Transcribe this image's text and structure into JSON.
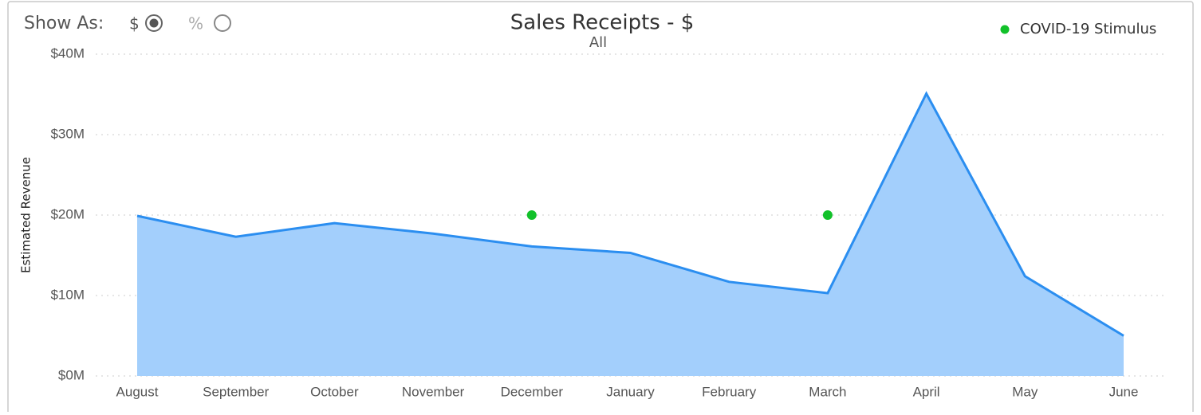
{
  "controls": {
    "label": "Show As:",
    "options": [
      "$",
      "%"
    ],
    "selected": 0
  },
  "chart_data": {
    "type": "area",
    "title": "Sales Receipts - $",
    "subtitle": "All",
    "y_label": "Estimated Revenue",
    "categories": [
      "August",
      "September",
      "October",
      "November",
      "December",
      "January",
      "February",
      "March",
      "April",
      "May",
      "June"
    ],
    "series": [
      {
        "color": "#2b8ef0",
        "fill": "#a3cffc",
        "values": [
          19.9,
          17.3,
          19.0,
          17.7,
          16.1,
          15.3,
          11.7,
          10.3,
          35.1,
          12.4,
          5.0
        ]
      },
      {
        "name": "COVID-19 Stimulus",
        "type": "scatter",
        "color": "#12c12a",
        "values": [
          null,
          null,
          null,
          null,
          20,
          null,
          null,
          20,
          null,
          null,
          null
        ]
      }
    ],
    "ylim": [
      0,
      40
    ],
    "yticks": [
      {
        "value": 0,
        "label": "$0M"
      },
      {
        "value": 10,
        "label": "$10M"
      },
      {
        "value": 20,
        "label": "$20M"
      },
      {
        "value": 30,
        "label": "$30M"
      },
      {
        "value": 40,
        "label": "$40M"
      }
    ],
    "grid": true,
    "legend": "top-right"
  }
}
